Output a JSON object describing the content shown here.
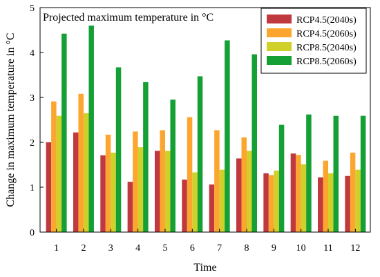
{
  "chart_data": {
    "type": "bar",
    "title": "Projected maximum temperature in °C",
    "xlabel": "Time",
    "ylabel": "Change in maximum temperature in °C",
    "ylim": [
      0,
      5
    ],
    "y_ticks": [
      "0",
      "1",
      "2",
      "3",
      "4",
      "5"
    ],
    "grid": false,
    "legend_position": "top-right",
    "categories": [
      "1",
      "2",
      "3",
      "4",
      "5",
      "6",
      "7",
      "8",
      "9",
      "10",
      "11",
      "12"
    ],
    "series": [
      {
        "name": "RCP4.5(2040s)",
        "color": "#c0393f",
        "values": [
          2.0,
          2.22,
          1.71,
          1.12,
          1.81,
          1.17,
          1.06,
          1.64,
          1.31,
          1.75,
          1.22,
          1.25
        ]
      },
      {
        "name": "RCP4.5(2060s)",
        "color": "#fca630",
        "values": [
          2.91,
          3.08,
          2.17,
          2.24,
          2.27,
          2.56,
          2.27,
          2.11,
          1.27,
          1.72,
          1.59,
          1.77
        ]
      },
      {
        "name": "RCP8.5(2040s)",
        "color": "#cfd12a",
        "values": [
          2.59,
          2.65,
          1.77,
          1.89,
          1.81,
          1.33,
          1.39,
          1.81,
          1.37,
          1.51,
          1.31,
          1.39
        ]
      },
      {
        "name": "RCP8.5(2060s)",
        "color": "#15a035",
        "values": [
          4.42,
          4.6,
          3.67,
          3.34,
          2.95,
          3.47,
          4.27,
          3.96,
          2.39,
          2.62,
          2.59,
          2.59
        ]
      }
    ]
  }
}
